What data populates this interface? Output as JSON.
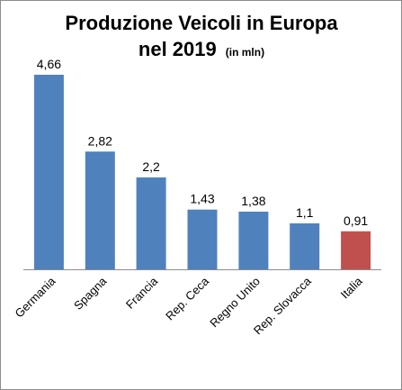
{
  "chart_data": {
    "type": "bar",
    "title_line1": "Produzione Veicoli in Europa",
    "title_line2": "nel 2019",
    "title_unit": "(in mln)",
    "categories": [
      "Germania",
      "Spagna",
      "Francia",
      "Rep. Ceca",
      "Regno Unito",
      "Rep. Slovacca",
      "Italia"
    ],
    "values": [
      4.66,
      2.82,
      2.2,
      1.43,
      1.38,
      1.1,
      0.91
    ],
    "value_labels": [
      "4,66",
      "2,82",
      "2,2",
      "1,43",
      "1,38",
      "1,1",
      "0,91"
    ],
    "colors": [
      "#4f81bd",
      "#4f81bd",
      "#4f81bd",
      "#4f81bd",
      "#4f81bd",
      "#4f81bd",
      "#c0504d"
    ],
    "xlabel": "",
    "ylabel": "",
    "ylim": [
      0,
      4.66
    ],
    "grid": false,
    "legend": "none"
  }
}
